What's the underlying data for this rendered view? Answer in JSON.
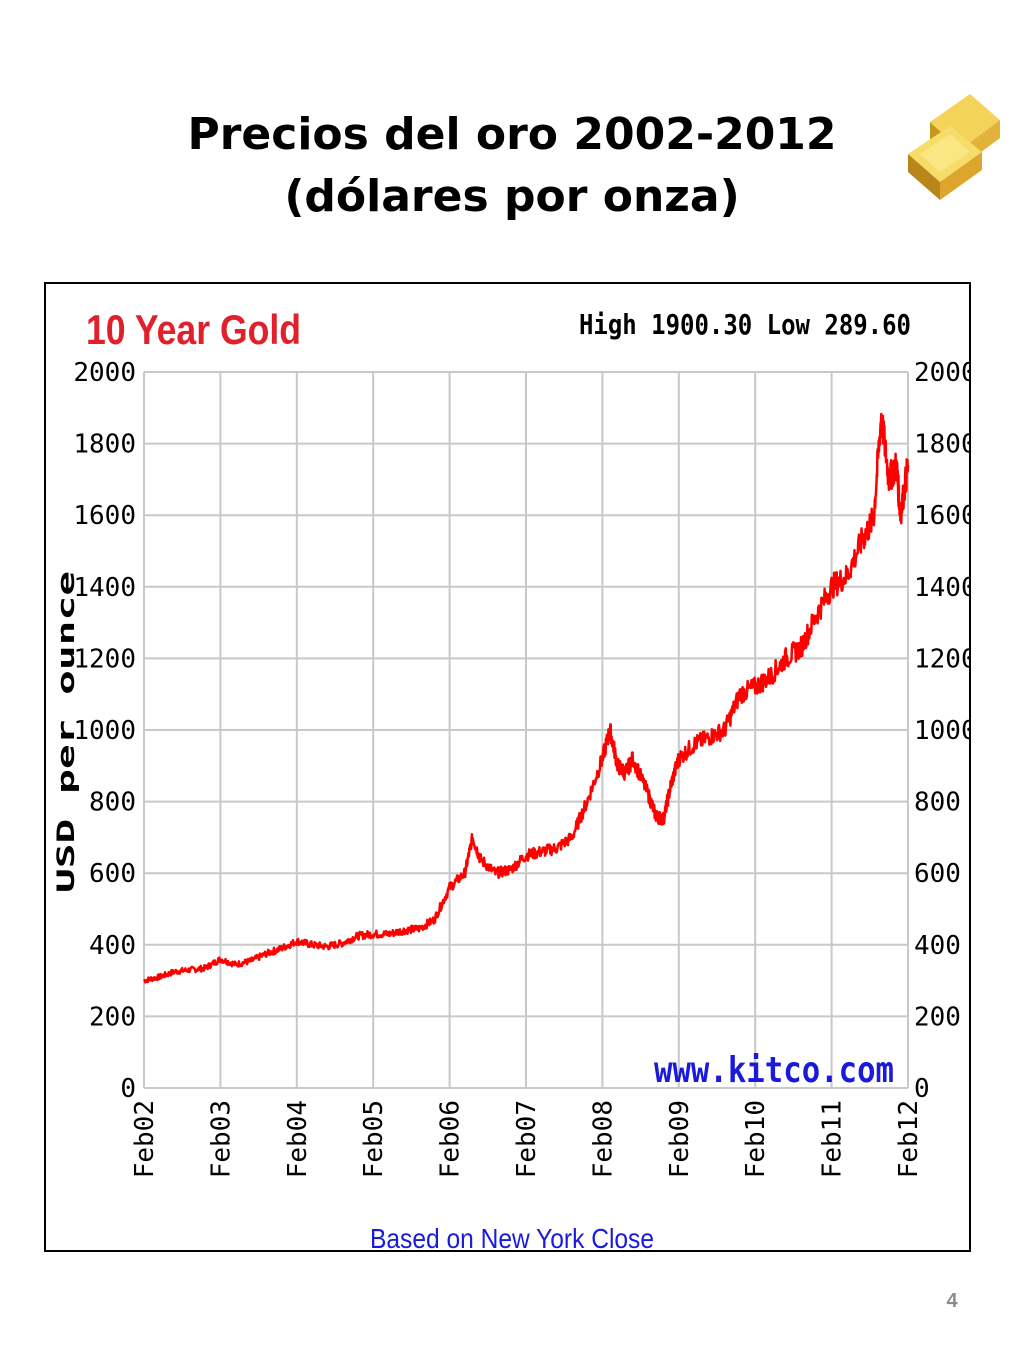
{
  "slide": {
    "title_line1": "Precios del oro 2002-2012",
    "title_line2": "(dólares por onza)",
    "page_number": "4",
    "icon": "gold-bars-icon"
  },
  "chart_data": {
    "type": "line",
    "title": "10 Year Gold",
    "stats": "High 1900.30 Low 289.60",
    "ylabel": "USD per ounce",
    "source": "www.kitco.com",
    "footer": "Based on New York Close",
    "ylim": [
      0,
      2000
    ],
    "yticks": [
      "0",
      "200",
      "400",
      "600",
      "800",
      "1000",
      "1200",
      "1400",
      "1600",
      "1800",
      "2000"
    ],
    "xticks": [
      "Feb02",
      "Feb03",
      "Feb04",
      "Feb05",
      "Feb06",
      "Feb07",
      "Feb08",
      "Feb09",
      "Feb10",
      "Feb11",
      "Feb12"
    ],
    "grid": true,
    "colors": {
      "line": "#ff0000",
      "title": "#e0202a",
      "source": "#1a1adc",
      "footer": "#1a1adc",
      "grid": "#c8c8c8"
    },
    "series": [
      {
        "x": [
          2002.0,
          2002.2,
          2002.4,
          2002.6,
          2002.8,
          2003.0,
          2003.2,
          2003.4,
          2003.6,
          2003.8,
          2004.0,
          2004.2,
          2004.4,
          2004.6,
          2004.8,
          2005.0,
          2005.2,
          2005.4,
          2005.6,
          2005.8,
          2006.0,
          2006.2,
          2006.3,
          2006.4,
          2006.6,
          2006.8,
          2007.0,
          2007.2,
          2007.4,
          2007.6,
          2007.8,
          2008.0,
          2008.1,
          2008.2,
          2008.3,
          2008.4,
          2008.6,
          2008.7,
          2008.8,
          2008.9,
          2009.0,
          2009.2,
          2009.4,
          2009.6,
          2009.8,
          2010.0,
          2010.2,
          2010.4,
          2010.6,
          2010.8,
          2011.0,
          2011.2,
          2011.4,
          2011.55,
          2011.65,
          2011.75,
          2011.85,
          2011.9,
          2012.0
        ],
        "values": [
          300,
          310,
          325,
          330,
          335,
          360,
          345,
          355,
          375,
          390,
          410,
          400,
          395,
          405,
          425,
          430,
          430,
          440,
          445,
          470,
          560,
          600,
          700,
          640,
          600,
          610,
          650,
          660,
          670,
          700,
          800,
          920,
          1000,
          900,
          880,
          920,
          820,
          760,
          750,
          850,
          920,
          960,
          980,
          1000,
          1100,
          1120,
          1150,
          1200,
          1230,
          1320,
          1400,
          1430,
          1530,
          1590,
          1880,
          1700,
          1740,
          1600,
          1740
        ]
      }
    ]
  }
}
